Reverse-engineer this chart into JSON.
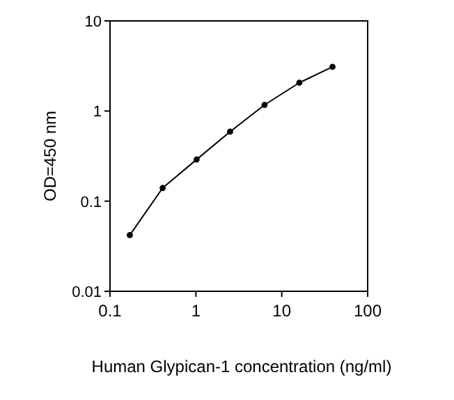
{
  "chart_data": {
    "type": "line",
    "xlabel": "Human Glypican-1 concentration (ng/ml)",
    "ylabel": "OD=450 nm",
    "log": "xy",
    "x": [
      0.17,
      0.41,
      1.02,
      2.5,
      6.3,
      16,
      39
    ],
    "series": [
      {
        "color": "#000000",
        "values": [
          0.042,
          0.14,
          0.29,
          0.59,
          1.17,
          2.06,
          3.1
        ]
      }
    ],
    "xlim": [
      0.1,
      100
    ],
    "ylim": [
      0.01,
      10
    ],
    "xticks": [
      0.1,
      1,
      10,
      100
    ],
    "yticks": [
      0.01,
      0.1,
      1,
      10
    ],
    "marker": "circle",
    "line_style": "solid",
    "grid": false
  }
}
